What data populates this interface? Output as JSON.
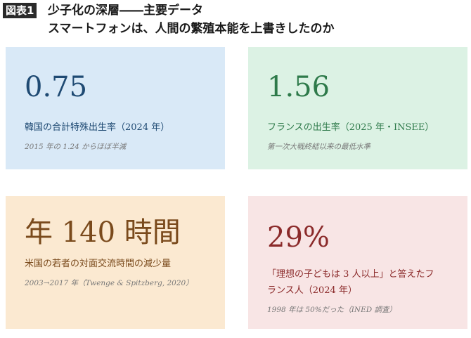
{
  "header": {
    "figure_label": "図表1",
    "title": "少子化の深層――主要データ",
    "subtitle": "スマートフォンは、人間の繁殖本能を上書きしたのか"
  },
  "colors": {
    "blue_card_bg": "#d9e9f7",
    "green_card_bg": "#dcf2e4",
    "orange_card_bg": "#fbe9d1",
    "pink_card_bg": "#f8e5e5"
  },
  "cards": [
    {
      "value": "0.75",
      "description": "韓国の合計特殊出生率（2024 年）",
      "note": "2015 年の 1.24 からほぼ半減"
    },
    {
      "value": "1.56",
      "description": "フランスの出生率（2025 年・INSEE）",
      "note": "第一次大戦終結以来の最低水準"
    },
    {
      "value": "年 140 時間",
      "description": "米国の若者の対面交流時間の減少量",
      "note": "2003→2017 年（Twenge & Spitzberg, 2020）"
    },
    {
      "value": "29%",
      "description_line1": "「理想の子どもは 3 人以上」と答えたフ",
      "description_line2": "ランス人（2024 年）",
      "note": "1998 年は 50%だった（INED 調査）"
    }
  ]
}
